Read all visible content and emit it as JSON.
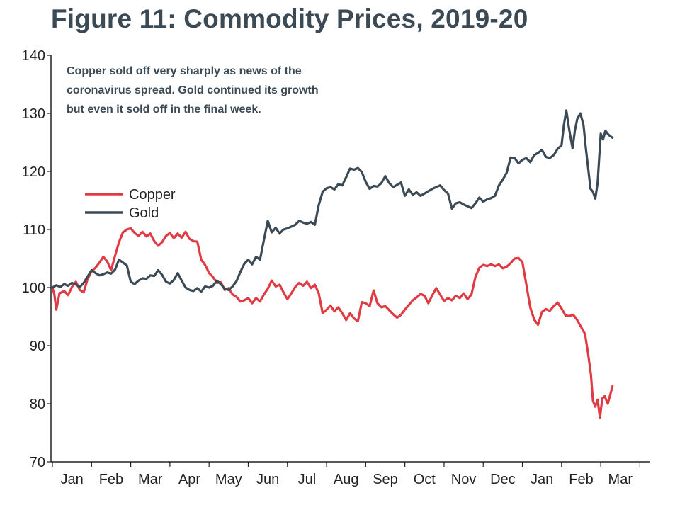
{
  "colors": {
    "copper": "#e03a43",
    "gold": "#3b4a55",
    "axis": "#222222"
  },
  "chart_data": {
    "type": "line",
    "title": "Figure 11: Commodity Prices, 2019-20",
    "annotation": [
      "Copper sold off very sharply as news of the",
      "coronavirus spread. Gold continued its growth",
      "but even it sold off in the final week."
    ],
    "xlabel": "",
    "ylabel": "",
    "ylim": [
      70,
      140
    ],
    "yticks": [
      70,
      80,
      90,
      100,
      110,
      120,
      130,
      140
    ],
    "categories": [
      "Jan",
      "Feb",
      "Mar",
      "Apr",
      "May",
      "Jun",
      "Jul",
      "Aug",
      "Sep",
      "Oct",
      "Nov",
      "Dec",
      "Jan",
      "Feb",
      "Mar"
    ],
    "legend": {
      "position": "left",
      "entries": [
        "Copper",
        "Gold"
      ]
    },
    "series": [
      {
        "name": "Copper",
        "color": "#e03a43",
        "points": [
          [
            0.0,
            100.0
          ],
          [
            0.05,
            98.8
          ],
          [
            0.1,
            96.2
          ],
          [
            0.18,
            99.0
          ],
          [
            0.3,
            99.4
          ],
          [
            0.4,
            98.7
          ],
          [
            0.5,
            100.1
          ],
          [
            0.6,
            101.0
          ],
          [
            0.7,
            99.6
          ],
          [
            0.8,
            99.2
          ],
          [
            0.9,
            101.5
          ],
          [
            1.0,
            102.8
          ],
          [
            1.1,
            103.4
          ],
          [
            1.2,
            104.3
          ],
          [
            1.3,
            105.3
          ],
          [
            1.4,
            104.5
          ],
          [
            1.5,
            103.0
          ],
          [
            1.6,
            105.5
          ],
          [
            1.7,
            107.8
          ],
          [
            1.8,
            109.5
          ],
          [
            1.9,
            110.0
          ],
          [
            2.0,
            110.2
          ],
          [
            2.1,
            109.4
          ],
          [
            2.2,
            108.9
          ],
          [
            2.3,
            109.6
          ],
          [
            2.4,
            108.8
          ],
          [
            2.5,
            109.3
          ],
          [
            2.6,
            108.0
          ],
          [
            2.7,
            107.2
          ],
          [
            2.8,
            107.8
          ],
          [
            2.9,
            108.9
          ],
          [
            3.0,
            109.4
          ],
          [
            3.1,
            108.5
          ],
          [
            3.2,
            109.3
          ],
          [
            3.3,
            108.6
          ],
          [
            3.4,
            109.6
          ],
          [
            3.5,
            108.4
          ],
          [
            3.6,
            108.0
          ],
          [
            3.7,
            107.9
          ],
          [
            3.8,
            104.8
          ],
          [
            3.9,
            103.9
          ],
          [
            4.0,
            102.5
          ],
          [
            4.1,
            101.8
          ],
          [
            4.2,
            100.8
          ],
          [
            4.3,
            100.9
          ],
          [
            4.4,
            99.6
          ],
          [
            4.5,
            99.9
          ],
          [
            4.6,
            98.8
          ],
          [
            4.7,
            98.4
          ],
          [
            4.8,
            97.6
          ],
          [
            4.9,
            97.8
          ],
          [
            5.0,
            98.2
          ],
          [
            5.1,
            97.3
          ],
          [
            5.2,
            98.2
          ],
          [
            5.3,
            97.6
          ],
          [
            5.4,
            98.8
          ],
          [
            5.5,
            99.8
          ],
          [
            5.6,
            101.2
          ],
          [
            5.7,
            100.2
          ],
          [
            5.8,
            100.5
          ],
          [
            5.9,
            99.2
          ],
          [
            6.0,
            98.0
          ],
          [
            6.1,
            99.0
          ],
          [
            6.2,
            100.1
          ],
          [
            6.3,
            100.8
          ],
          [
            6.4,
            100.3
          ],
          [
            6.5,
            101.0
          ],
          [
            6.6,
            99.9
          ],
          [
            6.7,
            100.5
          ],
          [
            6.8,
            99.0
          ],
          [
            6.9,
            95.6
          ],
          [
            7.0,
            96.2
          ],
          [
            7.1,
            96.9
          ],
          [
            7.2,
            95.9
          ],
          [
            7.3,
            96.6
          ],
          [
            7.4,
            95.6
          ],
          [
            7.5,
            94.4
          ],
          [
            7.6,
            95.6
          ],
          [
            7.7,
            94.7
          ],
          [
            7.8,
            94.2
          ],
          [
            7.9,
            97.5
          ],
          [
            8.0,
            97.3
          ],
          [
            8.1,
            96.8
          ],
          [
            8.2,
            99.5
          ],
          [
            8.3,
            97.3
          ],
          [
            8.4,
            96.6
          ],
          [
            8.5,
            96.8
          ],
          [
            8.6,
            96.1
          ],
          [
            8.7,
            95.4
          ],
          [
            8.8,
            94.8
          ],
          [
            8.9,
            95.3
          ],
          [
            9.0,
            96.2
          ],
          [
            9.1,
            97.0
          ],
          [
            9.2,
            97.8
          ],
          [
            9.3,
            98.3
          ],
          [
            9.4,
            98.9
          ],
          [
            9.5,
            98.6
          ],
          [
            9.6,
            97.3
          ],
          [
            9.7,
            98.7
          ],
          [
            9.8,
            99.9
          ],
          [
            9.9,
            98.8
          ],
          [
            10.0,
            97.7
          ],
          [
            10.1,
            98.2
          ],
          [
            10.2,
            97.8
          ],
          [
            10.3,
            98.6
          ],
          [
            10.4,
            98.2
          ],
          [
            10.5,
            99.0
          ],
          [
            10.6,
            98.0
          ],
          [
            10.7,
            98.8
          ],
          [
            10.8,
            101.8
          ],
          [
            10.9,
            103.4
          ],
          [
            11.0,
            103.9
          ],
          [
            11.1,
            103.7
          ],
          [
            11.2,
            104.0
          ],
          [
            11.3,
            103.7
          ],
          [
            11.4,
            104.0
          ],
          [
            11.5,
            103.3
          ],
          [
            11.6,
            103.6
          ],
          [
            11.7,
            104.2
          ],
          [
            11.8,
            105.0
          ],
          [
            11.9,
            105.1
          ],
          [
            12.0,
            104.4
          ],
          [
            12.1,
            100.5
          ],
          [
            12.2,
            96.6
          ],
          [
            12.3,
            94.5
          ],
          [
            12.4,
            93.6
          ],
          [
            12.5,
            95.8
          ],
          [
            12.6,
            96.3
          ],
          [
            12.7,
            96.0
          ],
          [
            12.8,
            96.8
          ],
          [
            12.9,
            97.4
          ],
          [
            13.0,
            96.4
          ],
          [
            13.1,
            95.2
          ],
          [
            13.2,
            95.1
          ],
          [
            13.3,
            95.3
          ],
          [
            13.4,
            94.4
          ],
          [
            13.5,
            93.2
          ],
          [
            13.6,
            92.0
          ],
          [
            13.68,
            88.5
          ],
          [
            13.75,
            85.0
          ],
          [
            13.8,
            80.5
          ],
          [
            13.86,
            79.5
          ],
          [
            13.92,
            80.7
          ],
          [
            13.98,
            77.6
          ],
          [
            14.04,
            80.9
          ],
          [
            14.1,
            81.3
          ],
          [
            14.18,
            80.0
          ],
          [
            14.24,
            81.5
          ],
          [
            14.3,
            83.0
          ]
        ]
      },
      {
        "name": "Gold",
        "color": "#3b4a55",
        "points": [
          [
            0.0,
            100.0
          ],
          [
            0.1,
            100.4
          ],
          [
            0.2,
            100.1
          ],
          [
            0.3,
            100.6
          ],
          [
            0.4,
            100.3
          ],
          [
            0.5,
            100.8
          ],
          [
            0.6,
            100.5
          ],
          [
            0.7,
            100.1
          ],
          [
            0.8,
            100.8
          ],
          [
            0.9,
            101.9
          ],
          [
            1.0,
            103.0
          ],
          [
            1.1,
            102.5
          ],
          [
            1.2,
            102.1
          ],
          [
            1.3,
            102.3
          ],
          [
            1.4,
            102.6
          ],
          [
            1.5,
            102.4
          ],
          [
            1.6,
            103.1
          ],
          [
            1.7,
            104.8
          ],
          [
            1.8,
            104.3
          ],
          [
            1.9,
            103.8
          ],
          [
            2.0,
            101.0
          ],
          [
            2.1,
            100.6
          ],
          [
            2.2,
            101.2
          ],
          [
            2.3,
            101.6
          ],
          [
            2.4,
            101.5
          ],
          [
            2.5,
            102.1
          ],
          [
            2.6,
            102.0
          ],
          [
            2.7,
            103.0
          ],
          [
            2.8,
            102.2
          ],
          [
            2.9,
            101.0
          ],
          [
            3.0,
            100.7
          ],
          [
            3.1,
            101.3
          ],
          [
            3.2,
            102.5
          ],
          [
            3.3,
            101.2
          ],
          [
            3.4,
            100.0
          ],
          [
            3.5,
            99.6
          ],
          [
            3.6,
            99.4
          ],
          [
            3.7,
            99.9
          ],
          [
            3.8,
            99.3
          ],
          [
            3.9,
            100.2
          ],
          [
            4.0,
            100.0
          ],
          [
            4.1,
            100.3
          ],
          [
            4.2,
            101.2
          ],
          [
            4.3,
            100.6
          ],
          [
            4.4,
            99.8
          ],
          [
            4.5,
            99.6
          ],
          [
            4.6,
            100.2
          ],
          [
            4.7,
            101.1
          ],
          [
            4.8,
            102.7
          ],
          [
            4.9,
            104.1
          ],
          [
            5.0,
            104.8
          ],
          [
            5.1,
            104.0
          ],
          [
            5.2,
            105.3
          ],
          [
            5.3,
            104.8
          ],
          [
            5.4,
            108.2
          ],
          [
            5.5,
            111.5
          ],
          [
            5.6,
            109.5
          ],
          [
            5.7,
            110.3
          ],
          [
            5.8,
            109.3
          ],
          [
            5.9,
            110.0
          ],
          [
            6.0,
            110.2
          ],
          [
            6.1,
            110.5
          ],
          [
            6.2,
            110.8
          ],
          [
            6.3,
            111.5
          ],
          [
            6.4,
            111.2
          ],
          [
            6.5,
            111.0
          ],
          [
            6.6,
            111.3
          ],
          [
            6.7,
            110.8
          ],
          [
            6.8,
            114.2
          ],
          [
            6.9,
            116.5
          ],
          [
            7.0,
            117.1
          ],
          [
            7.1,
            117.3
          ],
          [
            7.2,
            116.9
          ],
          [
            7.3,
            117.8
          ],
          [
            7.4,
            117.6
          ],
          [
            7.5,
            119.0
          ],
          [
            7.6,
            120.5
          ],
          [
            7.7,
            120.3
          ],
          [
            7.8,
            120.6
          ],
          [
            7.9,
            119.9
          ],
          [
            8.0,
            118.2
          ],
          [
            8.1,
            117.0
          ],
          [
            8.2,
            117.5
          ],
          [
            8.3,
            117.4
          ],
          [
            8.4,
            118.0
          ],
          [
            8.5,
            119.2
          ],
          [
            8.6,
            118.0
          ],
          [
            8.7,
            117.3
          ],
          [
            8.8,
            117.7
          ],
          [
            8.9,
            118.1
          ],
          [
            9.0,
            115.8
          ],
          [
            9.1,
            116.9
          ],
          [
            9.2,
            116.0
          ],
          [
            9.3,
            116.4
          ],
          [
            9.4,
            115.8
          ],
          [
            9.5,
            116.2
          ],
          [
            9.6,
            116.6
          ],
          [
            9.7,
            117.0
          ],
          [
            9.8,
            117.3
          ],
          [
            9.9,
            117.6
          ],
          [
            10.0,
            116.8
          ],
          [
            10.1,
            116.2
          ],
          [
            10.2,
            113.6
          ],
          [
            10.3,
            114.5
          ],
          [
            10.4,
            114.7
          ],
          [
            10.5,
            114.3
          ],
          [
            10.6,
            114.0
          ],
          [
            10.7,
            113.7
          ],
          [
            10.8,
            114.5
          ],
          [
            10.9,
            115.5
          ],
          [
            11.0,
            114.8
          ],
          [
            11.1,
            115.2
          ],
          [
            11.2,
            115.4
          ],
          [
            11.3,
            115.8
          ],
          [
            11.4,
            117.6
          ],
          [
            11.5,
            118.6
          ],
          [
            11.6,
            119.8
          ],
          [
            11.7,
            122.4
          ],
          [
            11.8,
            122.3
          ],
          [
            11.9,
            121.4
          ],
          [
            12.0,
            122.0
          ],
          [
            12.1,
            122.3
          ],
          [
            12.2,
            121.6
          ],
          [
            12.3,
            122.8
          ],
          [
            12.4,
            123.2
          ],
          [
            12.5,
            123.7
          ],
          [
            12.6,
            122.5
          ],
          [
            12.7,
            122.3
          ],
          [
            12.8,
            122.8
          ],
          [
            12.9,
            123.9
          ],
          [
            13.0,
            124.5
          ],
          [
            13.06,
            128.0
          ],
          [
            13.12,
            130.5
          ],
          [
            13.2,
            127.0
          ],
          [
            13.28,
            124.0
          ],
          [
            13.34,
            127.0
          ],
          [
            13.4,
            129.0
          ],
          [
            13.48,
            130.0
          ],
          [
            13.56,
            128.0
          ],
          [
            13.62,
            124.0
          ],
          [
            13.68,
            120.5
          ],
          [
            13.74,
            117.0
          ],
          [
            13.8,
            116.5
          ],
          [
            13.86,
            115.3
          ],
          [
            13.92,
            118.0
          ],
          [
            14.0,
            126.5
          ],
          [
            14.06,
            125.5
          ],
          [
            14.12,
            127.0
          ],
          [
            14.2,
            126.3
          ],
          [
            14.3,
            125.8
          ]
        ]
      }
    ]
  }
}
